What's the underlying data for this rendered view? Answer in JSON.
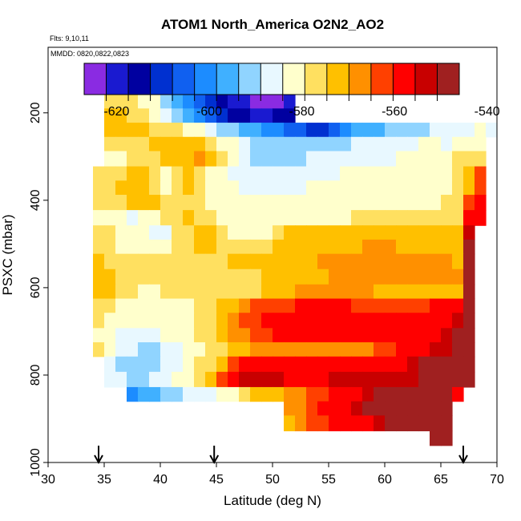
{
  "chart_data": {
    "type": "heatmap",
    "title": "ATOM1 North_America O2N2_AO2",
    "flights_label": "Flts: 9,10,11",
    "dates_label": "MMDD: 0820,0822,0823",
    "xlabel": "Latitude (deg N)",
    "ylabel": "PSXC (mbar)",
    "xlim": [
      30,
      70
    ],
    "ylim": [
      1000,
      50
    ],
    "x_ticks": [
      30,
      35,
      40,
      45,
      50,
      55,
      60,
      65,
      70
    ],
    "y_ticks": [
      200,
      400,
      600,
      800,
      1000
    ],
    "colorbar": {
      "range": [
        -627,
        -546
      ],
      "ticks": [
        -620,
        -600,
        -580,
        -560,
        -540
      ],
      "tick_labels": [
        "-620",
        "-600",
        "-580",
        "-560",
        "-540"
      ],
      "colors": [
        "#8a2be2",
        "#1a1ad0",
        "#0000a0",
        "#0030d0",
        "#1060f0",
        "#1c8cff",
        "#40b0ff",
        "#90d4ff",
        "#e8f8ff",
        "#ffffcc",
        "#ffe060",
        "#ffc000",
        "#ff9000",
        "#ff4000",
        "#ff0000",
        "#c80000",
        "#a02020"
      ]
    },
    "flight_markers_lat": [
      34.5,
      44.8,
      67.0
    ],
    "row_pressures": [
      175,
      205,
      240,
      270,
      305,
      340,
      370,
      405,
      440,
      475,
      505,
      540,
      575,
      610,
      640,
      675,
      710,
      740,
      775,
      810,
      845,
      875,
      910,
      945
    ],
    "rows": [
      {
        "p": 175,
        "lat0": 35,
        "lat1": 52,
        "values": [
          -575,
          -575,
          -577,
          -580,
          -583,
          -590,
          -595,
          -600,
          -605,
          -610,
          -615,
          -618,
          -622,
          -624,
          -624,
          -623,
          -622
        ]
      },
      {
        "p": 205,
        "lat0": 35,
        "lat1": 52,
        "values": [
          -574,
          -574,
          -575,
          -578,
          -582,
          -588,
          -592,
          -598,
          -603,
          -607,
          -612,
          -615,
          -616,
          -618,
          -618,
          -616,
          -616
        ]
      },
      {
        "p": 240,
        "lat0": 35,
        "lat1": 70,
        "values": [
          -572,
          -572,
          -573,
          -574,
          -575,
          -575,
          -578,
          -580,
          -584,
          -588,
          -590,
          -593,
          -596,
          -598,
          -600,
          -602,
          -604,
          -606,
          -610,
          -612,
          -605,
          -600,
          -598,
          -596,
          -595,
          -593,
          -592,
          -590,
          -590,
          -588,
          -588,
          -586,
          -585,
          -584,
          -588
        ]
      },
      {
        "p": 270,
        "lat0": 35,
        "lat1": 69,
        "values": [
          -578,
          -578,
          -575,
          -575,
          -574,
          -574,
          -572,
          -570,
          -572,
          -576,
          -580,
          -584,
          -588,
          -590,
          -590,
          -590,
          -590,
          -590,
          -590,
          -590,
          -590,
          -590,
          -588,
          -588,
          -586,
          -586,
          -586,
          -585,
          -584,
          -584,
          -585,
          -584,
          -582,
          -580
        ]
      },
      {
        "p": 305,
        "lat0": 35,
        "lat1": 69,
        "values": [
          -582,
          -580,
          -578,
          -576,
          -575,
          -574,
          -573,
          -572,
          -568,
          -574,
          -578,
          -582,
          -585,
          -590,
          -590,
          -590,
          -590,
          -590,
          -588,
          -588,
          -588,
          -588,
          -587,
          -586,
          -586,
          -585,
          -584,
          -582,
          -582,
          -582,
          -580,
          -576,
          -575,
          -575
        ]
      },
      {
        "p": 340,
        "lat0": 34,
        "lat1": 69,
        "values": [
          -578,
          -576,
          -575,
          -574,
          -573,
          -576,
          -580,
          -578,
          -574,
          -578,
          -582,
          -580,
          -586,
          -588,
          -588,
          -588,
          -588,
          -586,
          -586,
          -586,
          -586,
          -586,
          -584,
          -584,
          -584,
          -584,
          -582,
          -582,
          -582,
          -582,
          -580,
          -580,
          -576,
          -570,
          -562
        ]
      },
      {
        "p": 370,
        "lat0": 34,
        "lat1": 69,
        "values": [
          -578,
          -576,
          -574,
          -574,
          -572,
          -578,
          -580,
          -576,
          -574,
          -576,
          -580,
          -580,
          -584,
          -586,
          -586,
          -586,
          -586,
          -586,
          -586,
          -584,
          -584,
          -584,
          -582,
          -582,
          -582,
          -582,
          -582,
          -582,
          -582,
          -582,
          -580,
          -580,
          -578,
          -570,
          -562
        ]
      },
      {
        "p": 405,
        "lat0": 34,
        "lat1": 69,
        "values": [
          -578,
          -576,
          -575,
          -574,
          -572,
          -574,
          -576,
          -576,
          -576,
          -578,
          -580,
          -580,
          -582,
          -584,
          -584,
          -584,
          -584,
          -584,
          -584,
          -582,
          -582,
          -582,
          -580,
          -580,
          -580,
          -580,
          -580,
          -580,
          -580,
          -580,
          -580,
          -578,
          -578,
          -565,
          -560
        ]
      },
      {
        "p": 440,
        "lat0": 34,
        "lat1": 69,
        "values": [
          -580,
          -582,
          -584,
          -586,
          -584,
          -580,
          -576,
          -575,
          -574,
          -576,
          -578,
          -580,
          -582,
          -584,
          -584,
          -584,
          -584,
          -582,
          -580,
          -580,
          -580,
          -580,
          -580,
          -578,
          -578,
          -578,
          -578,
          -576,
          -576,
          -576,
          -576,
          -576,
          -576,
          -560,
          -560
        ]
      },
      {
        "p": 475,
        "lat0": 34,
        "lat1": 68,
        "values": [
          -576,
          -578,
          -580,
          -582,
          -584,
          -586,
          -588,
          -578,
          -576,
          -574,
          -574,
          -576,
          -580,
          -582,
          -582,
          -580,
          -576,
          -574,
          -572,
          -570,
          -570,
          -570,
          -570,
          -570,
          -570,
          -570,
          -570,
          -572,
          -572,
          -572,
          -574,
          -574,
          -574,
          -555
        ]
      },
      {
        "p": 505,
        "lat0": 34,
        "lat1": 68,
        "values": [
          -576,
          -578,
          -580,
          -580,
          -580,
          -582,
          -582,
          -578,
          -576,
          -574,
          -574,
          -575,
          -576,
          -578,
          -578,
          -576,
          -574,
          -572,
          -570,
          -570,
          -570,
          -570,
          -570,
          -570,
          -568,
          -568,
          -568,
          -570,
          -570,
          -570,
          -572,
          -572,
          -574,
          -550
        ]
      },
      {
        "p": 540,
        "lat0": 34,
        "lat1": 68,
        "values": [
          -574,
          -575,
          -576,
          -577,
          -578,
          -578,
          -578,
          -578,
          -576,
          -576,
          -576,
          -575,
          -574,
          -574,
          -574,
          -574,
          -572,
          -572,
          -570,
          -570,
          -568,
          -568,
          -568,
          -568,
          -568,
          -566,
          -566,
          -566,
          -566,
          -568,
          -568,
          -568,
          -570,
          -548
        ]
      },
      {
        "p": 575,
        "lat0": 34,
        "lat1": 68,
        "values": [
          -574,
          -574,
          -575,
          -576,
          -576,
          -576,
          -576,
          -576,
          -576,
          -576,
          -576,
          -576,
          -576,
          -576,
          -576,
          -574,
          -574,
          -572,
          -572,
          -570,
          -570,
          -568,
          -568,
          -568,
          -568,
          -568,
          -568,
          -568,
          -568,
          -568,
          -568,
          -568,
          -568,
          -545
        ]
      },
      {
        "p": 610,
        "lat0": 34,
        "lat1": 68,
        "values": [
          -574,
          -574,
          -575,
          -578,
          -580,
          -580,
          -578,
          -578,
          -576,
          -576,
          -576,
          -576,
          -576,
          -575,
          -575,
          -574,
          -572,
          -570,
          -568,
          -568,
          -568,
          -566,
          -566,
          -566,
          -566,
          -570,
          -570,
          -570,
          -570,
          -570,
          -570,
          -570,
          -570,
          -542
        ]
      },
      {
        "p": 640,
        "lat0": 34,
        "lat1": 68,
        "values": [
          -576,
          -578,
          -580,
          -582,
          -584,
          -582,
          -580,
          -580,
          -580,
          -578,
          -576,
          -574,
          -570,
          -568,
          -565,
          -564,
          -562,
          -562,
          -560,
          -560,
          -558,
          -560,
          -560,
          -562,
          -562,
          -564,
          -564,
          -564,
          -562,
          -562,
          -558,
          -556,
          -556,
          -540
        ]
      },
      {
        "p": 675,
        "lat0": 34,
        "lat1": 68,
        "values": [
          -578,
          -580,
          -582,
          -584,
          -584,
          -582,
          -580,
          -580,
          -580,
          -578,
          -576,
          -572,
          -566,
          -564,
          -562,
          -560,
          -558,
          -558,
          -556,
          -556,
          -556,
          -558,
          -558,
          -558,
          -560,
          -560,
          -560,
          -560,
          -560,
          -560,
          -560,
          -558,
          -554,
          -540
        ]
      },
      {
        "p": 710,
        "lat0": 34,
        "lat1": 68,
        "values": [
          -580,
          -582,
          -585,
          -586,
          -586,
          -585,
          -584,
          -582,
          -580,
          -578,
          -576,
          -572,
          -568,
          -566,
          -565,
          -562,
          -560,
          -560,
          -560,
          -560,
          -560,
          -560,
          -560,
          -560,
          -560,
          -560,
          -560,
          -558,
          -558,
          -556,
          -556,
          -554,
          -550,
          -540
        ]
      },
      {
        "p": 740,
        "lat0": 34,
        "lat1": 68,
        "values": [
          -578,
          -582,
          -585,
          -588,
          -590,
          -590,
          -588,
          -585,
          -582,
          -580,
          -578,
          -575,
          -572,
          -570,
          -568,
          -568,
          -568,
          -568,
          -568,
          -568,
          -568,
          -568,
          -568,
          -568,
          -566,
          -564,
          -562,
          -560,
          -558,
          -556,
          -554,
          -552,
          -548,
          -540
        ]
      },
      {
        "p": 775,
        "lat0": 35,
        "lat1": 68,
        "values": [
          -588,
          -590,
          -592,
          -592,
          -590,
          -588,
          -585,
          -582,
          -578,
          -575,
          -570,
          -565,
          -560,
          -558,
          -558,
          -558,
          -558,
          -556,
          -558,
          -558,
          -556,
          -556,
          -556,
          -556,
          -556,
          -556,
          -556,
          -554,
          -550,
          -546,
          -540,
          -540,
          -540
        ]
      },
      {
        "p": 810,
        "lat0": 35,
        "lat1": 68,
        "values": [
          -586,
          -588,
          -590,
          -590,
          -588,
          -585,
          -582,
          -580,
          -575,
          -570,
          -562,
          -556,
          -554,
          -552,
          -552,
          -554,
          -556,
          -556,
          -556,
          -556,
          -554,
          -554,
          -554,
          -554,
          -554,
          -554,
          -554,
          -552,
          -548,
          -544,
          -540,
          -540,
          -540
        ]
      },
      {
        "p": 845,
        "lat0": 37,
        "lat1": 67,
        "values": [
          -602,
          -598,
          -594,
          -592,
          -590,
          -588,
          -586,
          -585,
          -582,
          -580,
          -576,
          -574,
          -572,
          -570,
          -568,
          -566,
          -564,
          -562,
          -560,
          -558,
          -556,
          -552,
          -550,
          -546,
          -544,
          -544,
          -542,
          -542,
          -542,
          -560
        ]
      },
      {
        "p": 875,
        "lat0": 51,
        "lat1": 66,
        "values": [
          -568,
          -566,
          -564,
          -560,
          -558,
          -556,
          -552,
          -550,
          -548,
          -546,
          -544,
          -542,
          -540,
          -540,
          -540
        ]
      },
      {
        "p": 910,
        "lat0": 51,
        "lat1": 66,
        "values": [
          -572,
          -568,
          -565,
          -562,
          -560,
          -558,
          -556,
          -556,
          -552,
          -548,
          -544,
          -542,
          -540,
          -538,
          -540
        ]
      },
      {
        "p": 945,
        "lat0": 64,
        "lat1": 66,
        "values": [
          -540,
          -538
        ]
      }
    ]
  }
}
